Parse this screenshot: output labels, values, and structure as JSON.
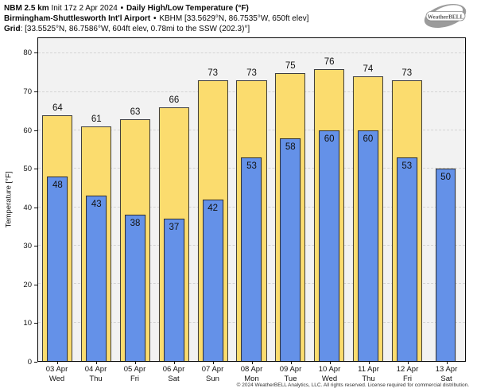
{
  "header": {
    "model": "NBM 2.5 km",
    "init": "Init 17z 2 Apr 2024",
    "sep": "•",
    "product": "Daily High/Low Temperature (°F)",
    "station": "Birmingham-Shuttlesworth Int'l Airport",
    "station_details": "KBHM [33.5629°N, 86.7535°W, 650ft elev]",
    "grid_label": "Grid",
    "grid_details": ": [33.5525°N, 86.7586°W, 604ft elev, 0.78mi to the SSW (202.3)°]"
  },
  "logo": {
    "name": "WeatherBELL"
  },
  "chart_data": {
    "type": "bar",
    "title": "Daily High/Low Temperature (°F)",
    "ylabel": "Temperature [°F]",
    "ylim": [
      0,
      84
    ],
    "yticks": [
      0,
      10,
      20,
      30,
      40,
      50,
      60,
      70,
      80
    ],
    "grid": "horizontal-dashed",
    "legend": "none",
    "categories_date": [
      "03 Apr",
      "04 Apr",
      "05 Apr",
      "06 Apr",
      "07 Apr",
      "08 Apr",
      "09 Apr",
      "10 Apr",
      "11 Apr",
      "12 Apr",
      "13 Apr"
    ],
    "categories_day": [
      "Wed",
      "Thu",
      "Fri",
      "Sat",
      "Sun",
      "Mon",
      "Tue",
      "Wed",
      "Thu",
      "Fri",
      "Sat"
    ],
    "series": [
      {
        "name": "High",
        "color": "#fbdc6e",
        "values": [
          64,
          61,
          63,
          66,
          73,
          73,
          75,
          76,
          74,
          73,
          null
        ]
      },
      {
        "name": "Low",
        "color": "#6491e8",
        "values": [
          48,
          43,
          38,
          37,
          42,
          53,
          58,
          60,
          60,
          53,
          50
        ]
      }
    ]
  },
  "footer": {
    "copyright": "© 2024 WeatherBELL Analytics, LLC. All rights reserved. License required for commercial distribution."
  }
}
